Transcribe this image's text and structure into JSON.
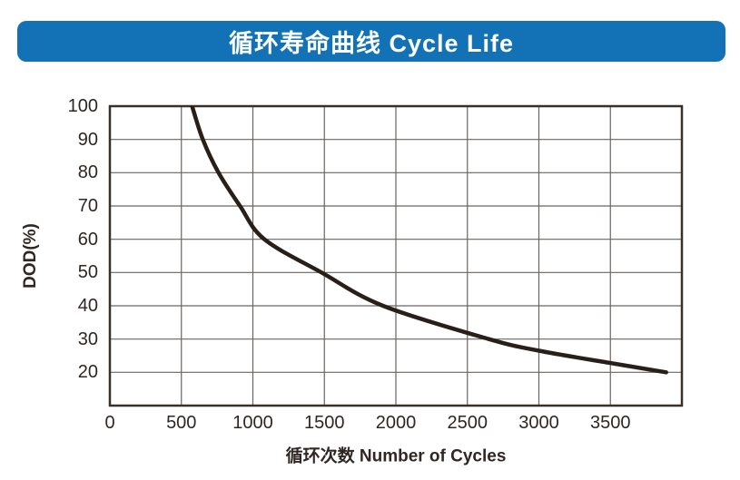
{
  "header": {
    "title": "循环寿命曲线 Cycle Life",
    "bg_color": "#1272b5",
    "text_color": "#ffffff"
  },
  "chart_data": {
    "type": "line",
    "title": "循环寿命曲线 Cycle Life",
    "xlabel": "循环次数 Number of Cycles",
    "ylabel": "DOD(%)",
    "xlim": [
      0,
      4000
    ],
    "ylim": [
      10,
      100
    ],
    "x_ticks": [
      0,
      500,
      1000,
      1500,
      2000,
      2500,
      3000,
      3500
    ],
    "y_ticks": [
      20,
      30,
      40,
      50,
      60,
      70,
      80,
      90,
      100
    ],
    "x_grid_step": 500,
    "y_grid_step": 10,
    "grid": true,
    "legend": "none",
    "series": [
      {
        "name": "cycle-life-curve",
        "points": [
          [
            575,
            100
          ],
          [
            650,
            90
          ],
          [
            760,
            80
          ],
          [
            910,
            70
          ],
          [
            1080,
            60
          ],
          [
            1480,
            50
          ],
          [
            1910,
            40
          ],
          [
            2650,
            30
          ],
          [
            3000,
            26.5
          ],
          [
            3500,
            22.8
          ],
          [
            3890,
            20
          ]
        ]
      }
    ],
    "colors": {
      "curve": "#281f19",
      "grid": "#6b6561",
      "border": "#38302b",
      "tick_text": "#2e2723"
    }
  }
}
